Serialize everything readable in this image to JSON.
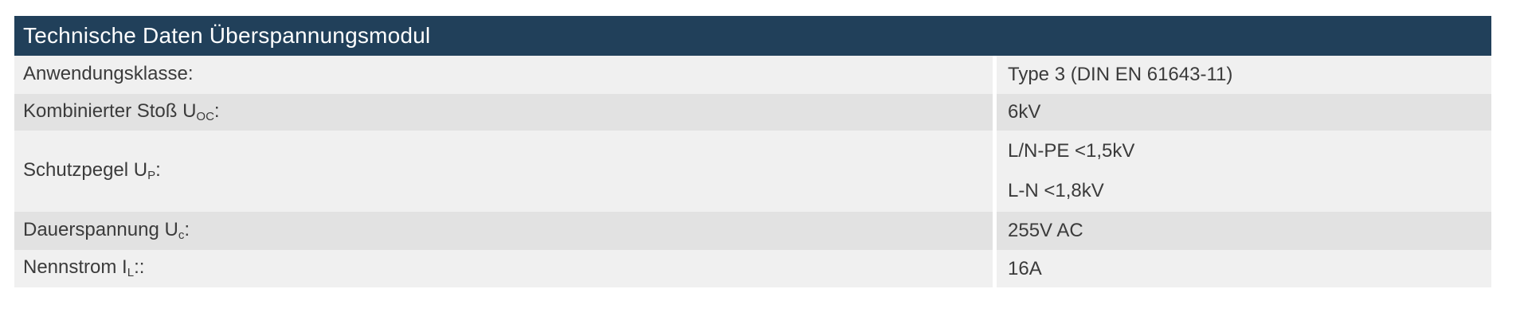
{
  "colors": {
    "header_bg": "#21405a",
    "header_text": "#ffffff",
    "row_light": "#f0f0f0",
    "row_dark": "#e2e2e2",
    "body_text": "#3b3b3b"
  },
  "table": {
    "title": "Technische Daten Überspannungsmodul",
    "rows": [
      {
        "label": "Anwendungsklasse",
        "label_sub": "",
        "label_suffix": ":",
        "values": [
          "Type 3 (DIN EN 61643-11)"
        ]
      },
      {
        "label": "Kombinierter Stoß U",
        "label_sub": "OC",
        "label_suffix": ":",
        "values": [
          "6kV"
        ]
      },
      {
        "label": "Schutzpegel U",
        "label_sub": "P",
        "label_suffix": ":",
        "values": [
          "L/N-PE <1,5kV",
          "L-N <1,8kV"
        ]
      },
      {
        "label": "Dauerspannung U",
        "label_sub": "c",
        "label_suffix": ":",
        "values": [
          "255V AC"
        ]
      },
      {
        "label": "Nennstrom I",
        "label_sub": "L",
        "label_suffix": "::",
        "values": [
          "16A"
        ]
      }
    ]
  }
}
